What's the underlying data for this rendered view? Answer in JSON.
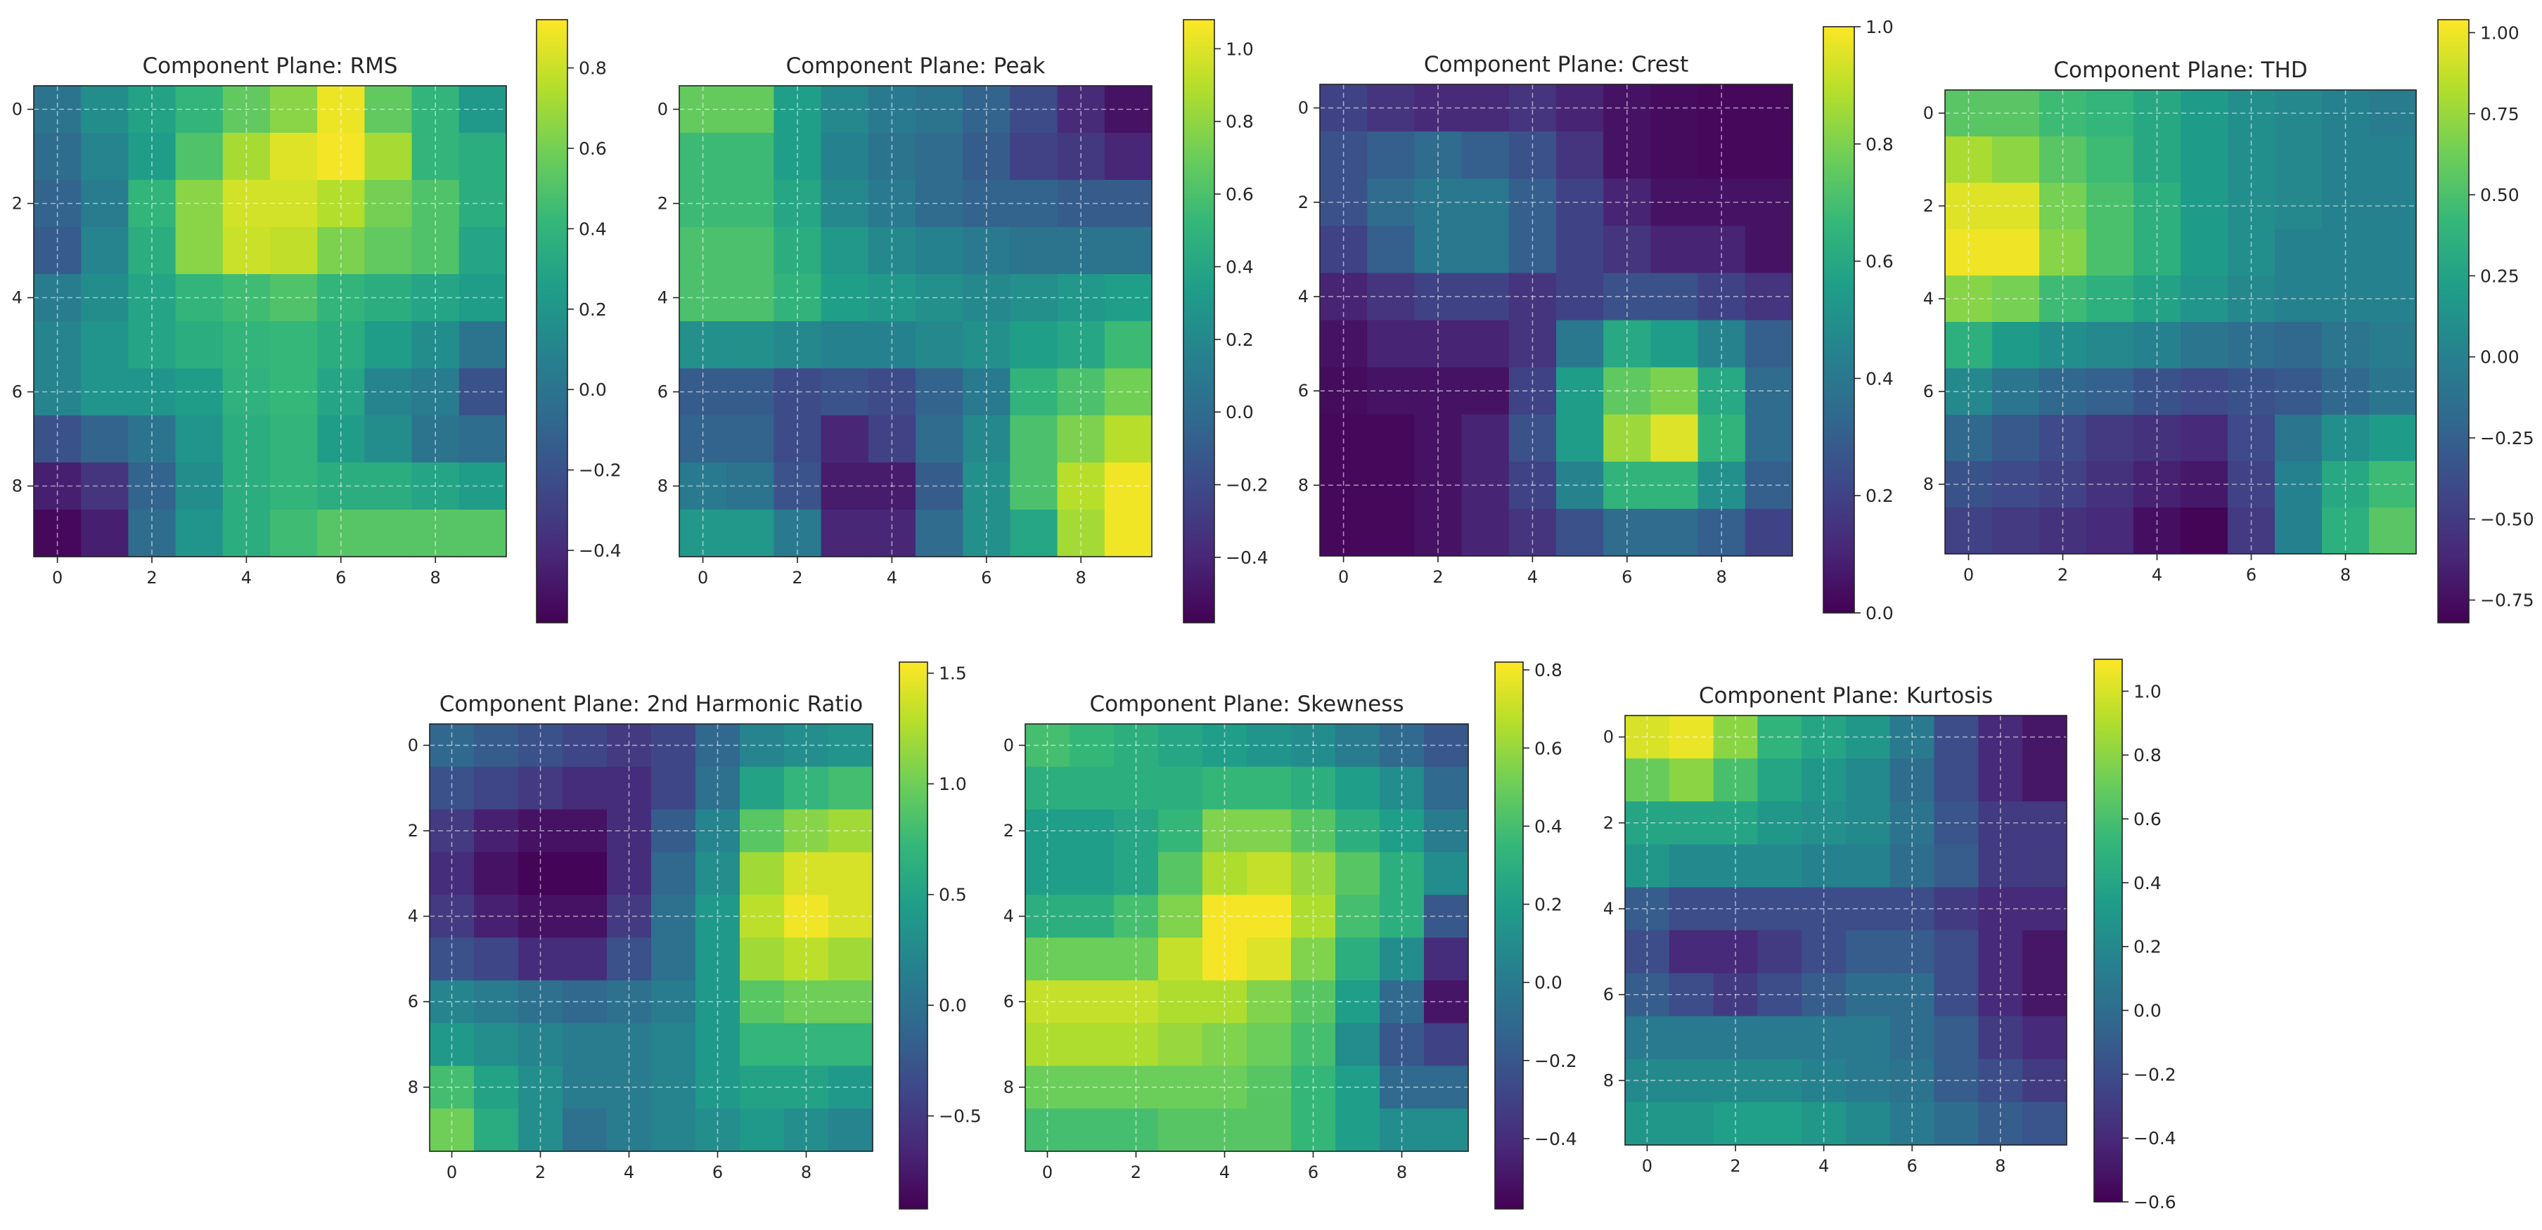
{
  "colormap": "viridis",
  "chart_data": [
    {
      "type": "heatmap",
      "title": "Component Plane: RMS",
      "x_ticks": [
        "0",
        "2",
        "4",
        "6",
        "8"
      ],
      "y_ticks": [
        "0",
        "2",
        "4",
        "6",
        "8"
      ],
      "colorbar": {
        "min": -0.58,
        "max": 0.92,
        "ticks": [
          "0.8",
          "0.6",
          "0.4",
          "0.2",
          "0.0",
          "−0.2",
          "−0.4"
        ]
      },
      "grid": true,
      "values": [
        [
          0.0,
          0.15,
          0.28,
          0.4,
          0.55,
          0.65,
          0.88,
          0.55,
          0.4,
          0.22
        ],
        [
          -0.05,
          0.1,
          0.25,
          0.5,
          0.72,
          0.85,
          0.9,
          0.72,
          0.4,
          0.35
        ],
        [
          -0.1,
          0.05,
          0.4,
          0.65,
          0.82,
          0.82,
          0.75,
          0.6,
          0.5,
          0.35
        ],
        [
          -0.15,
          0.1,
          0.35,
          0.65,
          0.8,
          0.78,
          0.62,
          0.55,
          0.5,
          0.3
        ],
        [
          0.05,
          0.15,
          0.3,
          0.4,
          0.45,
          0.5,
          0.4,
          0.35,
          0.3,
          0.25
        ],
        [
          0.1,
          0.2,
          0.3,
          0.35,
          0.4,
          0.42,
          0.35,
          0.25,
          0.15,
          0.0
        ],
        [
          0.1,
          0.2,
          0.2,
          0.25,
          0.38,
          0.42,
          0.3,
          0.1,
          0.05,
          -0.2
        ],
        [
          -0.2,
          -0.1,
          0.0,
          0.2,
          0.35,
          0.4,
          0.25,
          0.15,
          0.0,
          -0.05
        ],
        [
          -0.45,
          -0.35,
          -0.1,
          0.15,
          0.35,
          0.4,
          0.35,
          0.35,
          0.3,
          0.25
        ],
        [
          -0.55,
          -0.45,
          -0.05,
          0.2,
          0.35,
          0.45,
          0.52,
          0.52,
          0.52,
          0.52
        ]
      ]
    },
    {
      "type": "heatmap",
      "title": "Component Plane: Peak",
      "x_ticks": [
        "0",
        "2",
        "4",
        "6",
        "8"
      ],
      "y_ticks": [
        "0",
        "2",
        "4",
        "6",
        "8"
      ],
      "colorbar": {
        "min": -0.58,
        "max": 1.08,
        "ticks": [
          "1.0",
          "0.8",
          "0.6",
          "0.4",
          "0.2",
          "0.0",
          "−0.2",
          "−0.4"
        ]
      },
      "grid": true,
      "values": [
        [
          0.68,
          0.68,
          0.35,
          0.2,
          0.1,
          0.05,
          -0.05,
          -0.2,
          -0.38,
          -0.5
        ],
        [
          0.55,
          0.55,
          0.35,
          0.15,
          0.05,
          0.0,
          -0.1,
          -0.25,
          -0.3,
          -0.4
        ],
        [
          0.55,
          0.55,
          0.4,
          0.2,
          0.1,
          0.0,
          -0.05,
          -0.05,
          -0.1,
          -0.1
        ],
        [
          0.6,
          0.6,
          0.45,
          0.3,
          0.2,
          0.15,
          0.1,
          0.05,
          0.05,
          0.05
        ],
        [
          0.6,
          0.6,
          0.5,
          0.35,
          0.3,
          0.25,
          0.2,
          0.25,
          0.3,
          0.35
        ],
        [
          0.25,
          0.25,
          0.2,
          0.15,
          0.15,
          0.2,
          0.25,
          0.35,
          0.4,
          0.55
        ],
        [
          -0.1,
          -0.1,
          -0.2,
          -0.15,
          -0.2,
          -0.05,
          0.1,
          0.5,
          0.6,
          0.72
        ],
        [
          -0.05,
          -0.05,
          -0.2,
          -0.4,
          -0.25,
          0.0,
          0.2,
          0.6,
          0.75,
          0.9
        ],
        [
          0.1,
          0.05,
          -0.15,
          -0.45,
          -0.45,
          -0.1,
          0.25,
          0.6,
          0.9,
          1.05
        ],
        [
          0.3,
          0.3,
          0.1,
          -0.4,
          -0.4,
          0.0,
          0.25,
          0.4,
          0.85,
          1.05
        ]
      ]
    },
    {
      "type": "heatmap",
      "title": "Component Plane: Crest",
      "x_ticks": [
        "0",
        "2",
        "4",
        "6",
        "8"
      ],
      "y_ticks": [
        "0",
        "2",
        "4",
        "6",
        "8"
      ],
      "colorbar": {
        "min": 0.0,
        "max": 1.0,
        "ticks": [
          "1.0",
          "0.8",
          "0.6",
          "0.4",
          "0.2",
          "0.0"
        ]
      },
      "grid": true,
      "values": [
        [
          0.2,
          0.15,
          0.12,
          0.12,
          0.15,
          0.1,
          0.05,
          0.03,
          0.02,
          0.02
        ],
        [
          0.25,
          0.3,
          0.35,
          0.3,
          0.25,
          0.15,
          0.05,
          0.03,
          0.02,
          0.02
        ],
        [
          0.25,
          0.35,
          0.4,
          0.4,
          0.3,
          0.2,
          0.1,
          0.05,
          0.05,
          0.05
        ],
        [
          0.2,
          0.3,
          0.4,
          0.4,
          0.3,
          0.2,
          0.15,
          0.1,
          0.1,
          0.05
        ],
        [
          0.1,
          0.15,
          0.2,
          0.2,
          0.15,
          0.2,
          0.25,
          0.25,
          0.2,
          0.15
        ],
        [
          0.05,
          0.1,
          0.1,
          0.1,
          0.15,
          0.4,
          0.6,
          0.55,
          0.45,
          0.3
        ],
        [
          0.03,
          0.05,
          0.05,
          0.05,
          0.2,
          0.55,
          0.75,
          0.8,
          0.6,
          0.35
        ],
        [
          0.02,
          0.02,
          0.05,
          0.1,
          0.25,
          0.55,
          0.85,
          0.95,
          0.65,
          0.35
        ],
        [
          0.02,
          0.02,
          0.05,
          0.1,
          0.2,
          0.45,
          0.65,
          0.65,
          0.5,
          0.3
        ],
        [
          0.02,
          0.02,
          0.05,
          0.1,
          0.15,
          0.25,
          0.35,
          0.35,
          0.3,
          0.2
        ]
      ]
    },
    {
      "type": "heatmap",
      "title": "Component Plane: THD",
      "x_ticks": [
        "0",
        "2",
        "4",
        "6",
        "8"
      ],
      "y_ticks": [
        "0",
        "2",
        "4",
        "6",
        "8"
      ],
      "colorbar": {
        "min": -0.82,
        "max": 1.04,
        "ticks": [
          "1.00",
          "0.75",
          "0.50",
          "0.25",
          "0.00",
          "−0.25",
          "−0.50",
          "−0.75"
        ]
      },
      "grid": true,
      "values": [
        [
          0.55,
          0.55,
          0.45,
          0.4,
          0.3,
          0.2,
          0.1,
          0.05,
          0.0,
          -0.05
        ],
        [
          0.8,
          0.72,
          0.55,
          0.45,
          0.3,
          0.2,
          0.1,
          0.05,
          0.0,
          0.0
        ],
        [
          0.95,
          0.95,
          0.65,
          0.5,
          0.35,
          0.2,
          0.1,
          0.05,
          0.0,
          0.0
        ],
        [
          1.0,
          1.0,
          0.7,
          0.5,
          0.35,
          0.2,
          0.1,
          0.0,
          0.0,
          0.0
        ],
        [
          0.7,
          0.65,
          0.45,
          0.35,
          0.25,
          0.15,
          0.05,
          0.0,
          0.0,
          0.0
        ],
        [
          0.35,
          0.2,
          0.1,
          0.05,
          0.0,
          -0.1,
          -0.15,
          -0.2,
          -0.1,
          -0.05
        ],
        [
          0.05,
          -0.1,
          -0.2,
          -0.25,
          -0.35,
          -0.4,
          -0.35,
          -0.3,
          -0.2,
          -0.1
        ],
        [
          -0.2,
          -0.3,
          -0.4,
          -0.5,
          -0.55,
          -0.6,
          -0.4,
          -0.1,
          0.1,
          0.2
        ],
        [
          -0.35,
          -0.4,
          -0.45,
          -0.55,
          -0.65,
          -0.7,
          -0.45,
          0.0,
          0.3,
          0.45
        ],
        [
          -0.45,
          -0.5,
          -0.55,
          -0.6,
          -0.75,
          -0.8,
          -0.5,
          0.0,
          0.35,
          0.55
        ]
      ]
    },
    {
      "type": "heatmap",
      "title": "Component Plane: 2nd Harmonic Ratio",
      "x_ticks": [
        "0",
        "2",
        "4",
        "6",
        "8"
      ],
      "y_ticks": [
        "0",
        "2",
        "4",
        "6",
        "8"
      ],
      "colorbar": {
        "min": -0.92,
        "max": 1.55,
        "ticks": [
          "1.5",
          "1.0",
          "0.5",
          "0.0",
          "−0.5"
        ]
      },
      "grid": true,
      "values": [
        [
          -0.1,
          -0.2,
          -0.3,
          -0.4,
          -0.5,
          -0.4,
          -0.1,
          0.2,
          0.3,
          0.35
        ],
        [
          -0.3,
          -0.4,
          -0.5,
          -0.6,
          -0.6,
          -0.4,
          0.0,
          0.5,
          0.7,
          0.8
        ],
        [
          -0.5,
          -0.7,
          -0.8,
          -0.8,
          -0.6,
          -0.2,
          0.2,
          0.9,
          1.1,
          1.2
        ],
        [
          -0.6,
          -0.8,
          -0.9,
          -0.9,
          -0.6,
          -0.1,
          0.3,
          1.2,
          1.4,
          1.4
        ],
        [
          -0.5,
          -0.7,
          -0.8,
          -0.8,
          -0.5,
          0.0,
          0.4,
          1.3,
          1.5,
          1.4
        ],
        [
          -0.3,
          -0.4,
          -0.6,
          -0.6,
          -0.3,
          0.0,
          0.4,
          1.2,
          1.3,
          1.2
        ],
        [
          0.2,
          0.1,
          0.0,
          -0.1,
          0.0,
          0.1,
          0.4,
          0.9,
          1.0,
          1.0
        ],
        [
          0.4,
          0.3,
          0.2,
          0.1,
          0.1,
          0.2,
          0.4,
          0.7,
          0.7,
          0.7
        ],
        [
          0.8,
          0.5,
          0.3,
          0.1,
          0.1,
          0.2,
          0.4,
          0.5,
          0.5,
          0.4
        ],
        [
          1.0,
          0.6,
          0.3,
          0.0,
          0.1,
          0.2,
          0.3,
          0.4,
          0.3,
          0.2
        ]
      ]
    },
    {
      "type": "heatmap",
      "title": "Component Plane: Skewness",
      "x_ticks": [
        "0",
        "2",
        "4",
        "6",
        "8"
      ],
      "y_ticks": [
        "0",
        "2",
        "4",
        "6",
        "8"
      ],
      "colorbar": {
        "min": -0.58,
        "max": 0.82,
        "ticks": [
          "0.8",
          "0.6",
          "0.4",
          "0.2",
          "0.0",
          "−0.2",
          "−0.4"
        ]
      },
      "grid": true,
      "values": [
        [
          0.4,
          0.35,
          0.3,
          0.25,
          0.2,
          0.15,
          0.1,
          0.0,
          -0.1,
          -0.2
        ],
        [
          0.3,
          0.3,
          0.3,
          0.3,
          0.35,
          0.35,
          0.3,
          0.2,
          0.1,
          -0.1
        ],
        [
          0.2,
          0.2,
          0.25,
          0.35,
          0.55,
          0.55,
          0.45,
          0.3,
          0.2,
          0.0
        ],
        [
          0.2,
          0.2,
          0.25,
          0.45,
          0.65,
          0.7,
          0.6,
          0.45,
          0.3,
          0.1
        ],
        [
          0.3,
          0.3,
          0.4,
          0.55,
          0.8,
          0.8,
          0.65,
          0.4,
          0.3,
          -0.2
        ],
        [
          0.5,
          0.5,
          0.5,
          0.7,
          0.8,
          0.75,
          0.55,
          0.3,
          0.1,
          -0.4
        ],
        [
          0.7,
          0.7,
          0.7,
          0.65,
          0.65,
          0.55,
          0.45,
          0.2,
          -0.1,
          -0.5
        ],
        [
          0.65,
          0.65,
          0.65,
          0.6,
          0.55,
          0.5,
          0.4,
          0.1,
          -0.2,
          -0.3
        ],
        [
          0.5,
          0.5,
          0.5,
          0.5,
          0.5,
          0.45,
          0.35,
          0.2,
          -0.1,
          -0.1
        ],
        [
          0.4,
          0.4,
          0.4,
          0.45,
          0.45,
          0.45,
          0.35,
          0.2,
          0.1,
          0.1
        ]
      ]
    },
    {
      "type": "heatmap",
      "title": "Component Plane: Kurtosis",
      "x_ticks": [
        "0",
        "2",
        "4",
        "6",
        "8"
      ],
      "y_ticks": [
        "0",
        "2",
        "4",
        "6",
        "8"
      ],
      "colorbar": {
        "min": -0.6,
        "max": 1.1,
        "ticks": [
          "1.0",
          "0.8",
          "0.6",
          "0.4",
          "0.2",
          "0.0",
          "−0.2",
          "−0.4",
          "−0.6"
        ]
      },
      "grid": true,
      "values": [
        [
          1.0,
          1.05,
          0.8,
          0.5,
          0.4,
          0.3,
          0.1,
          -0.2,
          -0.4,
          -0.5
        ],
        [
          0.7,
          0.8,
          0.6,
          0.4,
          0.3,
          0.2,
          0.0,
          -0.2,
          -0.4,
          -0.5
        ],
        [
          0.4,
          0.4,
          0.4,
          0.3,
          0.25,
          0.2,
          0.05,
          -0.15,
          -0.3,
          -0.3
        ],
        [
          0.3,
          0.2,
          0.2,
          0.2,
          0.15,
          0.15,
          0.0,
          -0.1,
          -0.3,
          -0.3
        ],
        [
          -0.1,
          -0.2,
          -0.2,
          -0.2,
          -0.2,
          -0.2,
          -0.2,
          -0.3,
          -0.4,
          -0.4
        ],
        [
          -0.2,
          -0.4,
          -0.4,
          -0.3,
          -0.2,
          -0.1,
          -0.1,
          -0.2,
          -0.4,
          -0.5
        ],
        [
          -0.1,
          -0.2,
          -0.3,
          -0.2,
          -0.1,
          0.0,
          0.0,
          -0.2,
          -0.4,
          -0.5
        ],
        [
          0.1,
          0.1,
          0.1,
          0.1,
          0.1,
          0.1,
          0.0,
          -0.1,
          -0.3,
          -0.4
        ],
        [
          0.2,
          0.2,
          0.2,
          0.2,
          0.15,
          0.1,
          0.05,
          -0.1,
          -0.2,
          -0.3
        ],
        [
          0.3,
          0.3,
          0.35,
          0.35,
          0.3,
          0.2,
          0.1,
          0.0,
          -0.1,
          -0.15
        ]
      ]
    }
  ]
}
